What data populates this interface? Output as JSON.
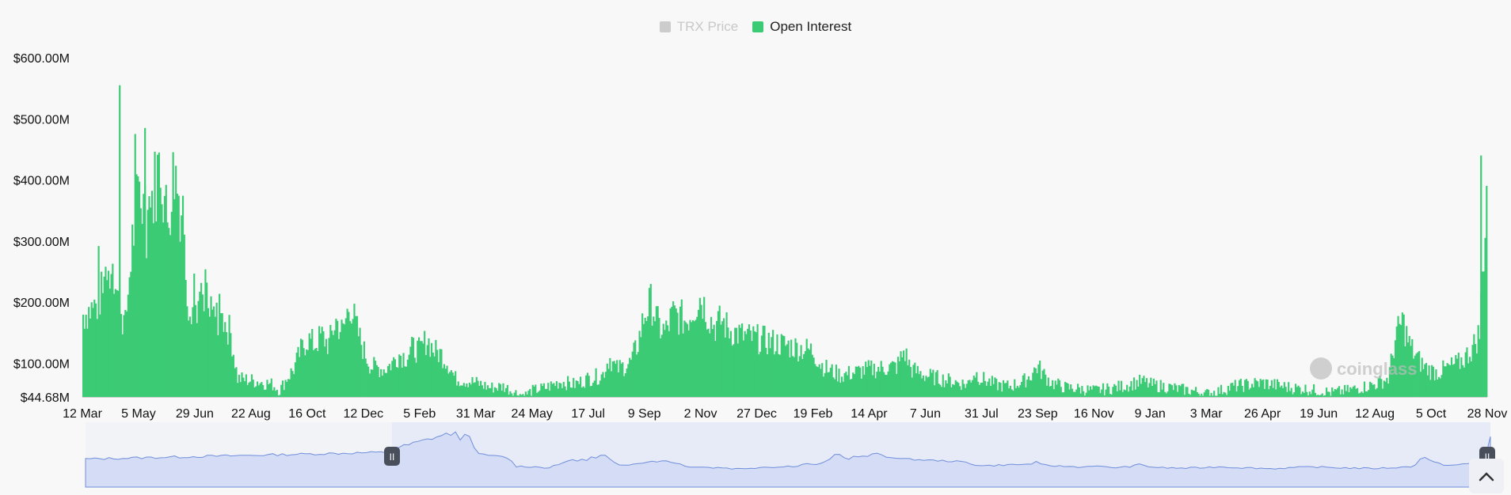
{
  "legend": [
    {
      "label": "TRX Price",
      "color": "#cccccc",
      "active": false
    },
    {
      "label": "Open Interest",
      "color": "#3ccb75",
      "active": true
    }
  ],
  "watermark": "coinglass",
  "chart_data": {
    "type": "bar",
    "series_name": "Open Interest",
    "color": "#3ccb75",
    "y_ticks": [
      "$600.00M",
      "$500.00M",
      "$400.00M",
      "$300.00M",
      "$200.00M",
      "$100.00M",
      "$44.68M"
    ],
    "y_min_label": "$44.68M",
    "ylim": [
      44.68,
      600
    ],
    "x_ticks": [
      "12 Mar",
      "5 May",
      "29 Jun",
      "22 Aug",
      "16 Oct",
      "12 Dec",
      "5 Feb",
      "31 Mar",
      "24 May",
      "17 Jul",
      "9 Sep",
      "2 Nov",
      "27 Dec",
      "19 Feb",
      "14 Apr",
      "7 Jun",
      "31 Jul",
      "23 Sep",
      "16 Nov",
      "9 Jan",
      "3 Mar",
      "26 Apr",
      "19 Jun",
      "12 Aug",
      "5 Oct",
      "28 Nov"
    ],
    "keypoints_millions": [
      [
        0,
        180
      ],
      [
        0.01,
        195
      ],
      [
        0.02,
        260
      ],
      [
        0.025,
        200
      ],
      [
        0.03,
        160
      ],
      [
        0.035,
        300
      ],
      [
        0.04,
        390
      ],
      [
        0.045,
        330
      ],
      [
        0.05,
        380
      ],
      [
        0.055,
        430
      ],
      [
        0.06,
        330
      ],
      [
        0.065,
        420
      ],
      [
        0.07,
        350
      ],
      [
        0.075,
        200
      ],
      [
        0.09,
        180
      ],
      [
        0.1,
        170
      ],
      [
        0.105,
        150
      ],
      [
        0.11,
        75
      ],
      [
        0.125,
        70
      ],
      [
        0.135,
        65
      ],
      [
        0.14,
        55
      ],
      [
        0.145,
        75
      ],
      [
        0.15,
        90
      ],
      [
        0.155,
        120
      ],
      [
        0.16,
        140
      ],
      [
        0.165,
        130
      ],
      [
        0.17,
        145
      ],
      [
        0.175,
        130
      ],
      [
        0.18,
        170
      ],
      [
        0.185,
        150
      ],
      [
        0.19,
        200
      ],
      [
        0.195,
        155
      ],
      [
        0.2,
        120
      ],
      [
        0.205,
        95
      ],
      [
        0.215,
        90
      ],
      [
        0.22,
        100
      ],
      [
        0.225,
        115
      ],
      [
        0.23,
        110
      ],
      [
        0.235,
        125
      ],
      [
        0.24,
        120
      ],
      [
        0.245,
        140
      ],
      [
        0.25,
        120
      ],
      [
        0.255,
        115
      ],
      [
        0.26,
        100
      ],
      [
        0.265,
        75
      ],
      [
        0.28,
        68
      ],
      [
        0.29,
        60
      ],
      [
        0.3,
        62
      ],
      [
        0.305,
        55
      ],
      [
        0.31,
        50
      ],
      [
        0.315,
        48
      ],
      [
        0.32,
        55
      ],
      [
        0.33,
        60
      ],
      [
        0.34,
        70
      ],
      [
        0.35,
        65
      ],
      [
        0.36,
        75
      ],
      [
        0.37,
        80
      ],
      [
        0.375,
        110
      ],
      [
        0.38,
        90
      ],
      [
        0.39,
        100
      ],
      [
        0.395,
        130
      ],
      [
        0.4,
        180
      ],
      [
        0.405,
        200
      ],
      [
        0.41,
        160
      ],
      [
        0.415,
        150
      ],
      [
        0.42,
        180
      ],
      [
        0.43,
        170
      ],
      [
        0.435,
        190
      ],
      [
        0.44,
        210
      ],
      [
        0.445,
        180
      ],
      [
        0.45,
        160
      ],
      [
        0.455,
        170
      ],
      [
        0.46,
        155
      ],
      [
        0.47,
        145
      ],
      [
        0.48,
        140
      ],
      [
        0.5,
        130
      ],
      [
        0.52,
        120
      ],
      [
        0.525,
        100
      ],
      [
        0.53,
        90
      ],
      [
        0.54,
        80
      ],
      [
        0.55,
        85
      ],
      [
        0.56,
        90
      ],
      [
        0.57,
        92
      ],
      [
        0.58,
        95
      ],
      [
        0.585,
        120
      ],
      [
        0.59,
        90
      ],
      [
        0.6,
        80
      ],
      [
        0.61,
        75
      ],
      [
        0.62,
        70
      ],
      [
        0.63,
        65
      ],
      [
        0.635,
        85
      ],
      [
        0.64,
        75
      ],
      [
        0.65,
        65
      ],
      [
        0.66,
        62
      ],
      [
        0.67,
        70
      ],
      [
        0.675,
        80
      ],
      [
        0.68,
        95
      ],
      [
        0.685,
        80
      ],
      [
        0.69,
        68
      ],
      [
        0.7,
        60
      ],
      [
        0.71,
        58
      ],
      [
        0.72,
        55
      ],
      [
        0.73,
        58
      ],
      [
        0.74,
        62
      ],
      [
        0.75,
        68
      ],
      [
        0.755,
        70
      ],
      [
        0.76,
        65
      ],
      [
        0.77,
        62
      ],
      [
        0.78,
        58
      ],
      [
        0.79,
        55
      ],
      [
        0.8,
        50
      ],
      [
        0.81,
        55
      ],
      [
        0.82,
        62
      ],
      [
        0.83,
        65
      ],
      [
        0.84,
        68
      ],
      [
        0.85,
        64
      ],
      [
        0.86,
        60
      ],
      [
        0.87,
        58
      ],
      [
        0.88,
        55
      ],
      [
        0.89,
        52
      ],
      [
        0.9,
        55
      ],
      [
        0.91,
        60
      ],
      [
        0.92,
        65
      ],
      [
        0.925,
        70
      ],
      [
        0.93,
        75
      ],
      [
        0.935,
        140
      ],
      [
        0.94,
        170
      ],
      [
        0.945,
        130
      ],
      [
        0.95,
        110
      ],
      [
        0.955,
        95
      ],
      [
        0.96,
        88
      ],
      [
        0.965,
        85
      ],
      [
        0.97,
        90
      ],
      [
        0.975,
        95
      ],
      [
        0.98,
        100
      ],
      [
        0.985,
        110
      ],
      [
        0.99,
        125
      ],
      [
        0.995,
        150
      ],
      [
        1.0,
        380
      ]
    ]
  },
  "navigator": {
    "pause_label": "II",
    "scroll_top_icon": "chevron-up-icon"
  }
}
